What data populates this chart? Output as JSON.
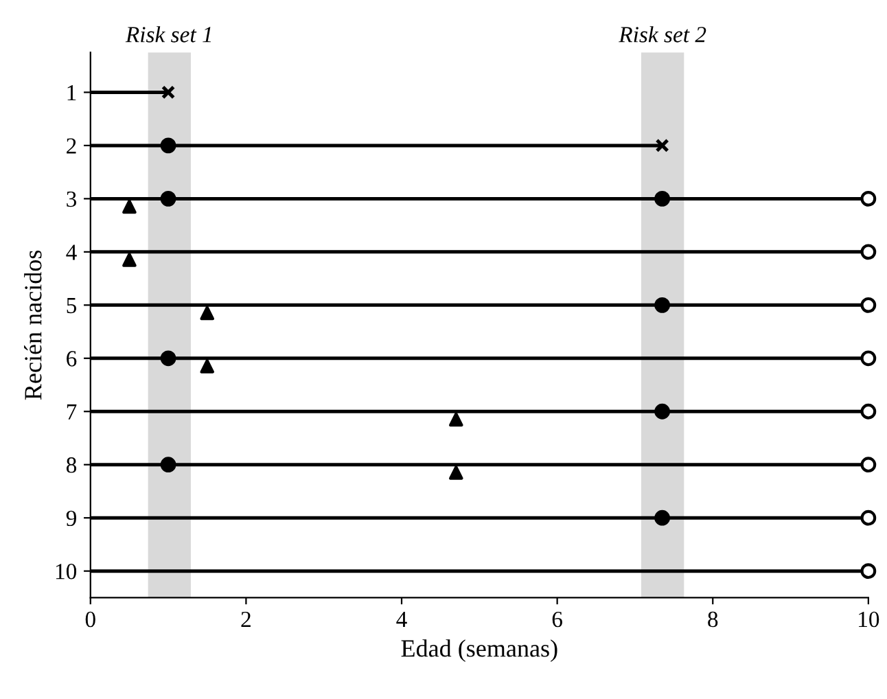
{
  "chart_data": {
    "type": "line",
    "xlabel": "Edad (semanas)",
    "ylabel": "Recién nacidos",
    "xlim": [
      0,
      10
    ],
    "xticks": [
      0,
      2,
      4,
      6,
      8,
      10
    ],
    "ylim": [
      10.5,
      0.25
    ],
    "yticks": [
      1,
      2,
      3,
      4,
      5,
      6,
      7,
      8,
      9,
      10
    ],
    "grid": false,
    "legend": false,
    "bands": [
      {
        "axis": "x",
        "from": 0.74,
        "to": 1.29,
        "label": "Risk set 1",
        "color": "#d9d9d9"
      },
      {
        "axis": "x",
        "from": 7.08,
        "to": 7.63,
        "label": "Risk set 2",
        "color": "#d9d9d9"
      }
    ],
    "series": [
      {
        "color": "#000000",
        "x": [
          0,
          1
        ],
        "values": [
          1,
          1
        ],
        "marker": "none"
      },
      {
        "color": "#000000",
        "x": [
          0,
          7.35
        ],
        "values": [
          2,
          2
        ],
        "marker": "none"
      },
      {
        "color": "#000000",
        "x": [
          0,
          10
        ],
        "values": [
          3,
          3
        ],
        "marker": "none"
      },
      {
        "color": "#000000",
        "x": [
          0,
          10
        ],
        "values": [
          4,
          4
        ],
        "marker": "none"
      },
      {
        "color": "#000000",
        "x": [
          0,
          10
        ],
        "values": [
          5,
          5
        ],
        "marker": "none"
      },
      {
        "color": "#000000",
        "x": [
          0,
          10
        ],
        "values": [
          6,
          6
        ],
        "marker": "none"
      },
      {
        "color": "#000000",
        "x": [
          0,
          10
        ],
        "values": [
          7,
          7
        ],
        "marker": "none"
      },
      {
        "color": "#000000",
        "x": [
          0,
          10
        ],
        "values": [
          8,
          8
        ],
        "marker": "none"
      },
      {
        "color": "#000000",
        "x": [
          0,
          10
        ],
        "values": [
          9,
          9
        ],
        "marker": "none"
      },
      {
        "color": "#000000",
        "x": [
          0,
          10
        ],
        "values": [
          10,
          10
        ],
        "marker": "none"
      },
      {
        "type": "scatter",
        "color": "#000000",
        "marker": "cross",
        "x": [
          1,
          7.35
        ],
        "values": [
          1,
          2
        ]
      },
      {
        "type": "scatter",
        "color": "#000000",
        "marker": "circle",
        "x": [
          1,
          1,
          1,
          1,
          7.35,
          7.35,
          7.35,
          7.35
        ],
        "values": [
          2,
          3,
          6,
          8,
          3,
          5,
          7,
          9
        ]
      },
      {
        "type": "scatter",
        "color": "#ffffff",
        "marker": "circle",
        "x": [
          10,
          10,
          10,
          10,
          10,
          10,
          10,
          10
        ],
        "values": [
          3,
          4,
          5,
          6,
          7,
          8,
          9,
          10
        ]
      },
      {
        "type": "scatter",
        "color": "#000000",
        "marker": "triangle",
        "x": [
          0.5,
          0.5,
          1.5,
          1.5,
          4.7,
          4.7
        ],
        "values": [
          3.15,
          4.15,
          5.15,
          6.15,
          7.15,
          8.15
        ]
      }
    ]
  }
}
